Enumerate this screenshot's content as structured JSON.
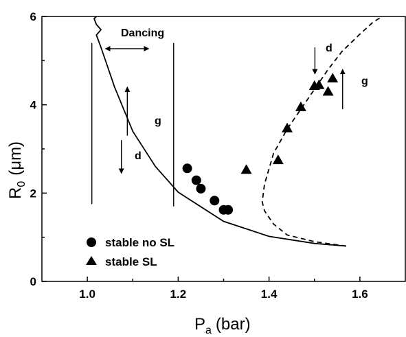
{
  "chart_data": {
    "type": "scatter",
    "xlabel": "P",
    "xlabel_sub": "a",
    "xlabel_unit": "(bar)",
    "ylabel": "R",
    "ylabel_sub": "0",
    "ylabel_unit": "(μm)",
    "xlim": [
      0.9,
      1.7
    ],
    "ylim": [
      0,
      6
    ],
    "x_ticks": [
      "1.0",
      "1.2",
      "1.4",
      "1.6"
    ],
    "y_ticks": [
      "0",
      "2",
      "4",
      "6"
    ],
    "x_tick_values": [
      1.0,
      1.2,
      1.4,
      1.6
    ],
    "y_tick_values": [
      0,
      2,
      4,
      6
    ],
    "series": [
      {
        "name": "stable no SL",
        "marker": "circle",
        "points": [
          [
            1.22,
            2.56
          ],
          [
            1.24,
            2.29
          ],
          [
            1.25,
            2.1
          ],
          [
            1.28,
            1.83
          ],
          [
            1.3,
            1.62
          ],
          [
            1.31,
            1.62
          ]
        ]
      },
      {
        "name": "stable SL",
        "marker": "triangle",
        "points": [
          [
            1.35,
            2.53
          ],
          [
            1.42,
            2.75
          ],
          [
            1.44,
            3.47
          ],
          [
            1.47,
            3.95
          ],
          [
            1.5,
            4.43
          ],
          [
            1.51,
            4.45
          ],
          [
            1.53,
            4.3
          ],
          [
            1.54,
            4.6
          ]
        ]
      }
    ],
    "curves": [
      {
        "style": "solid",
        "points": [
          [
            1.57,
            0.8
          ],
          [
            1.5,
            0.86
          ],
          [
            1.4,
            1.02
          ],
          [
            1.3,
            1.36
          ],
          [
            1.2,
            2.02
          ],
          [
            1.15,
            2.6
          ],
          [
            1.1,
            3.4
          ],
          [
            1.06,
            4.4
          ],
          [
            1.03,
            5.3
          ],
          [
            1.02,
            5.58
          ],
          [
            1.03,
            5.7
          ],
          [
            1.02,
            5.82
          ],
          [
            1.015,
            5.95
          ],
          [
            1.02,
            6.0
          ]
        ]
      },
      {
        "style": "dashed",
        "points": [
          [
            1.57,
            0.8
          ],
          [
            1.5,
            0.9
          ],
          [
            1.44,
            1.05
          ],
          [
            1.41,
            1.3
          ],
          [
            1.39,
            1.6
          ],
          [
            1.385,
            1.8
          ],
          [
            1.39,
            2.2
          ],
          [
            1.41,
            2.9
          ],
          [
            1.44,
            3.45
          ],
          [
            1.48,
            4.05
          ],
          [
            1.53,
            4.8
          ],
          [
            1.56,
            5.2
          ],
          [
            1.6,
            5.6
          ],
          [
            1.63,
            5.88
          ],
          [
            1.65,
            6.0
          ]
        ]
      }
    ],
    "vertical_lines": [
      {
        "x": 1.01,
        "y_range": [
          1.75,
          5.4
        ]
      },
      {
        "x": 1.19,
        "y_range": [
          1.7,
          5.4
        ]
      }
    ],
    "annotations": {
      "dancing": "Dancing",
      "g": "g",
      "d": "d"
    },
    "arrows": [
      {
        "label": "g",
        "x": 1.088,
        "y_from": 3.3,
        "y_to": 4.4
      },
      {
        "label": "d",
        "x": 1.075,
        "y_from": 3.2,
        "y_to": 2.45
      },
      {
        "label": "d",
        "x": 1.501,
        "y_from": 5.3,
        "y_to": 4.7
      },
      {
        "label": "g",
        "x": 1.562,
        "y_from": 3.9,
        "y_to": 4.8
      }
    ],
    "dancing_arrow": {
      "x_from": 1.04,
      "x_to": 1.135,
      "y": 5.27
    },
    "legend": {
      "position": "bottom-left"
    }
  }
}
